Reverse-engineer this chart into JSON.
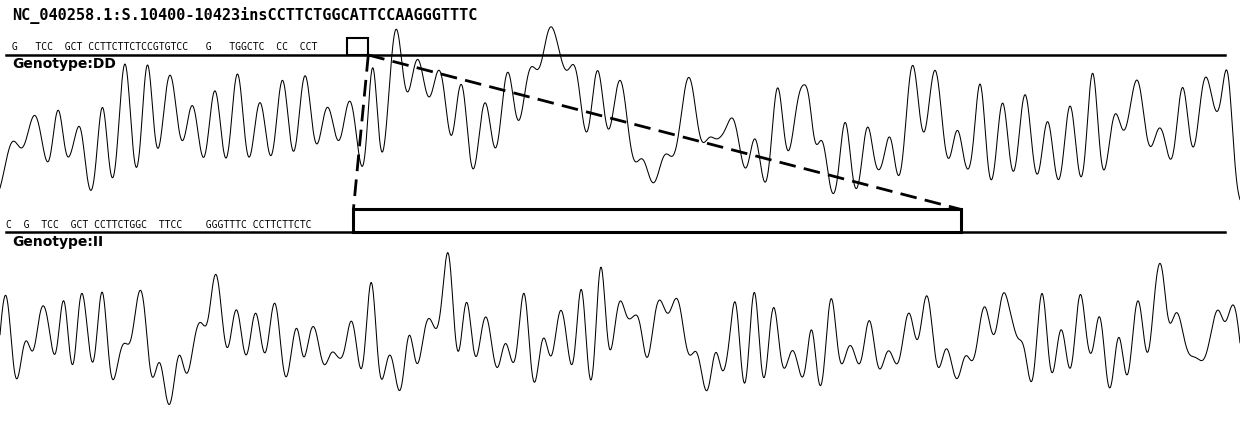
{
  "title": "NC_040258.1:S.10400-10423insCCTTCTGGCATTCCAAGGGTTTC",
  "title_fontsize": 11,
  "title_fontweight": "bold",
  "bg_color": "#ffffff",
  "seq_top": " G   TCC  GCT CCTTCTTCTCCGTGTCC   G   TGGCTC  CC  CCT",
  "seq_bot": "C  G  TCC  GCT CCTTCTGGC  TTCC    GGGTTTC CCTTCTTCTC",
  "genotype_dd": "Genotype:DD",
  "genotype_ii": "Genotype:II",
  "label_fontsize": 7,
  "genotype_fontsize": 10
}
